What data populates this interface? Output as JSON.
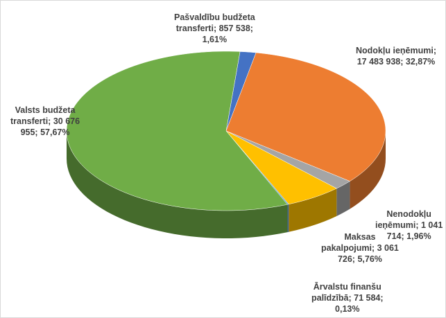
{
  "chart_data": {
    "type": "pie",
    "title": "",
    "slices": [
      {
        "label": "Pašvaldību budžeta transferti",
        "value": 857538,
        "percent": 1.61,
        "color": "#4472c4",
        "text": "Pašvaldību budžeta\ntransferti; 857 538;\n1,61%"
      },
      {
        "label": "Nodokļu ieņēmumi",
        "value": 17483938,
        "percent": 32.87,
        "color": "#ed7d31",
        "text": "Nodokļu ieņēmumi;\n17 483 938; 32,87%"
      },
      {
        "label": "Nenodokļu ieņēmumi",
        "value": 1041714,
        "percent": 1.96,
        "color": "#a5a5a5",
        "text": "Nenodokļu\nieņēmumi; 1 041\n714; 1,96%"
      },
      {
        "label": "Maksas pakalpojumi",
        "value": 3061726,
        "percent": 5.76,
        "color": "#ffc000",
        "text": "Maksas\npakalpojumi; 3 061\n726; 5,76%"
      },
      {
        "label": "Ārvalstu finanšu palīdzībā",
        "value": 71584,
        "percent": 0.13,
        "color": "#5b9bd5",
        "text": "Ārvalstu finanšu\npalīdzībā; 71 584;\n0,13%"
      },
      {
        "label": "Valsts budžeta transferti",
        "value": 30676955,
        "percent": 57.67,
        "color": "#70ad47",
        "text": "Valsts budžeta\ntransferti; 30 676\n955; 57,67%"
      }
    ],
    "legend": "none",
    "style": "3d-pie"
  }
}
